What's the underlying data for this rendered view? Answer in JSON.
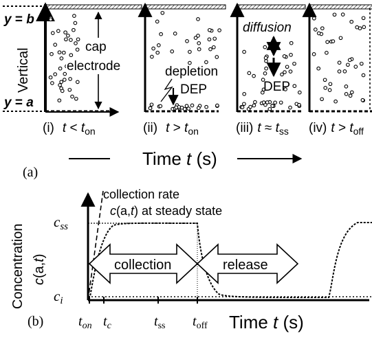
{
  "panel_a": {
    "y_top": {
      "y": "y",
      "eq": " = ",
      "b": "b"
    },
    "y_bottom": {
      "y": "y",
      "eq": " = ",
      "a": "a"
    },
    "vertical_label": "Vertical",
    "cap_label": "cap",
    "electrode_label": "electrode",
    "depletion_label": "depletion",
    "dep_label": "DEP",
    "diffusion_label": "diffusion",
    "dep_label_3": "DEP",
    "sub_i": {
      "num": "(i)",
      "t": "t",
      "op": " < ",
      "t2": "t",
      "sub": "on"
    },
    "sub_ii": {
      "num": "(ii)",
      "t": "t",
      "op": " > ",
      "t2": "t",
      "sub": "on"
    },
    "sub_iii": {
      "num": "(iii)",
      "t": "t",
      "op": " ≈ ",
      "t2": "t",
      "sub": "ss"
    },
    "sub_iv": {
      "num": "(iv)",
      "t": "t",
      "op": " > ",
      "t2": "t",
      "sub": "off"
    },
    "time_axis": {
      "pre": "Time ",
      "t": "t",
      "post": " (s)"
    },
    "panel_tag": "(a)"
  },
  "panel_b": {
    "panel_tag": "(b)",
    "collection_rate_label": "collection rate",
    "steady_state_label": {
      "c": "c",
      "mid": "(a,",
      "t": "t",
      "end": ") at steady state"
    },
    "y_outer_label": "Concentration",
    "y_inner_label": {
      "c": "c",
      "mid": "(a,",
      "t": "t",
      "end": ")"
    },
    "c_ss": {
      "c": "c",
      "sub": "ss"
    },
    "c_i": {
      "c": "c",
      "sub": "i"
    },
    "collection_label": "collection",
    "release_label": "release",
    "t_on": {
      "t": "t",
      "sub": "on"
    },
    "t_c": {
      "t": "t",
      "sub": "c"
    },
    "t_ss": {
      "t": "t",
      "sub": "ss"
    },
    "t_off": {
      "t": "t",
      "sub": "off"
    },
    "time_axis": {
      "pre": "Time ",
      "t": "t",
      "post": " (s)"
    }
  }
}
